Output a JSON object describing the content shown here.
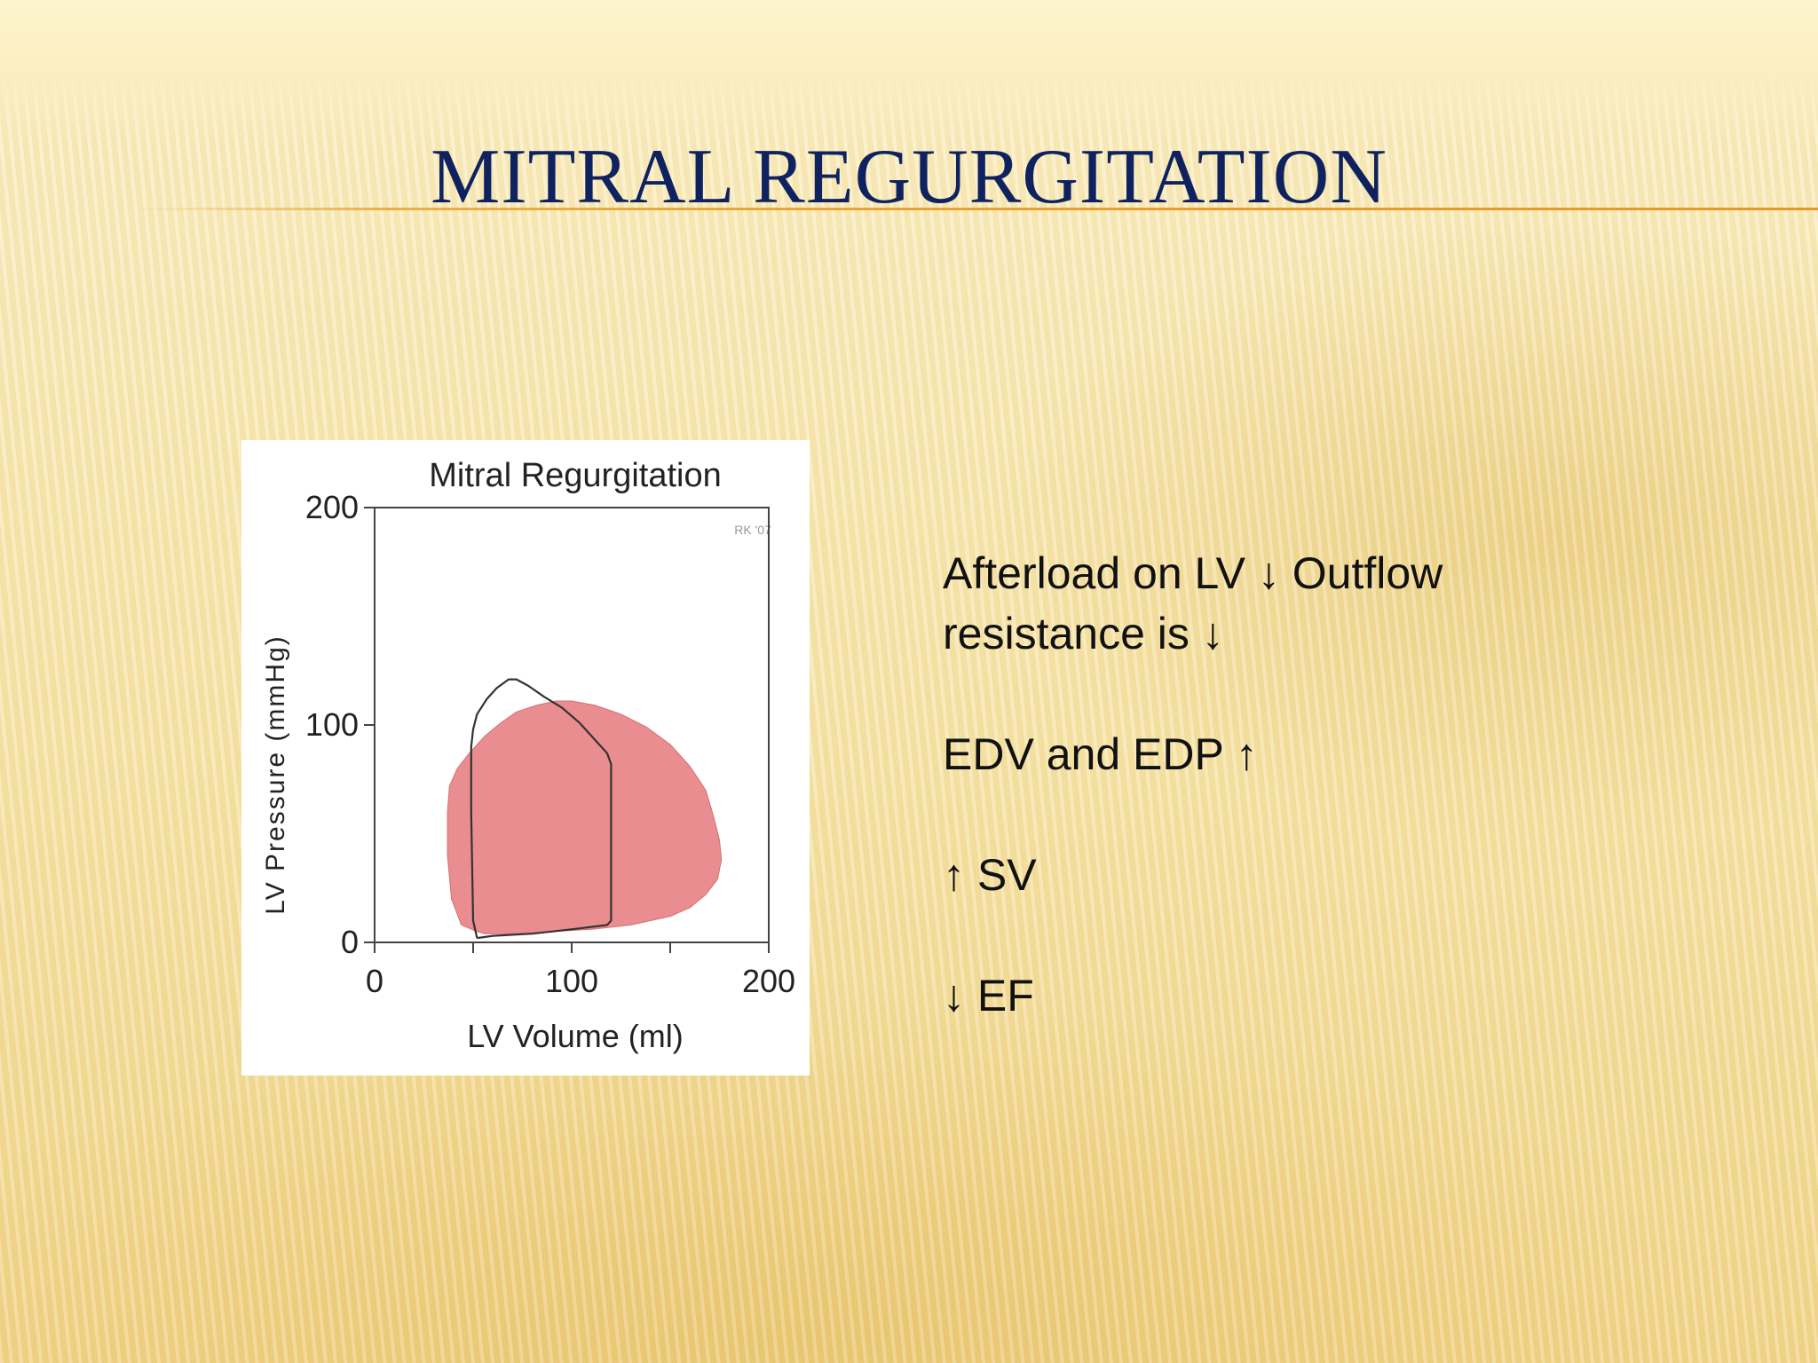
{
  "slide": {
    "title": "MITRAL REGURGITATION",
    "bullets": [
      "Afterload on LV ↓ Outflow resistance is ↓",
      "EDV and EDP ↑",
      "↑ SV",
      "↓ EF"
    ]
  },
  "chart_data": {
    "type": "line",
    "title": "Mitral Regurgitation",
    "watermark": "RK '07",
    "xlabel": "LV Volume (ml)",
    "ylabel": "LV Pressure (mmHg)",
    "xlim": [
      0,
      200
    ],
    "ylim": [
      0,
      200
    ],
    "x_ticks": [
      0,
      100,
      200
    ],
    "y_ticks": [
      0,
      100,
      200
    ],
    "grid": false,
    "series": [
      {
        "style": "outline",
        "color": "#333333",
        "points": [
          [
            52,
            2
          ],
          [
            50,
            10
          ],
          [
            49,
            60
          ],
          [
            49,
            90
          ],
          [
            50,
            98
          ],
          [
            52,
            105
          ],
          [
            57,
            112
          ],
          [
            62,
            117
          ],
          [
            68,
            121
          ],
          [
            72,
            121
          ],
          [
            78,
            118
          ],
          [
            86,
            113
          ],
          [
            95,
            108
          ],
          [
            104,
            101
          ],
          [
            112,
            93
          ],
          [
            118,
            87
          ],
          [
            120,
            82
          ],
          [
            120,
            60
          ],
          [
            120,
            25
          ],
          [
            120,
            10
          ],
          [
            118,
            8
          ],
          [
            100,
            6
          ],
          [
            80,
            4
          ],
          [
            60,
            3
          ],
          [
            52,
            2
          ]
        ]
      },
      {
        "style": "filled",
        "color": "#e8878a",
        "points": [
          [
            52,
            5
          ],
          [
            44,
            8
          ],
          [
            39,
            20
          ],
          [
            37,
            40
          ],
          [
            37,
            60
          ],
          [
            38,
            72
          ],
          [
            42,
            80
          ],
          [
            48,
            87
          ],
          [
            56,
            95
          ],
          [
            64,
            101
          ],
          [
            72,
            106
          ],
          [
            82,
            109
          ],
          [
            92,
            111
          ],
          [
            100,
            111
          ],
          [
            112,
            109
          ],
          [
            125,
            105
          ],
          [
            138,
            99
          ],
          [
            150,
            91
          ],
          [
            160,
            81
          ],
          [
            168,
            70
          ],
          [
            172,
            58
          ],
          [
            175,
            47
          ],
          [
            176,
            38
          ],
          [
            174,
            29
          ],
          [
            168,
            22
          ],
          [
            160,
            16
          ],
          [
            150,
            12
          ],
          [
            130,
            8
          ],
          [
            110,
            6
          ],
          [
            90,
            5
          ],
          [
            70,
            4
          ],
          [
            56,
            4
          ],
          [
            52,
            5
          ]
        ]
      }
    ]
  }
}
